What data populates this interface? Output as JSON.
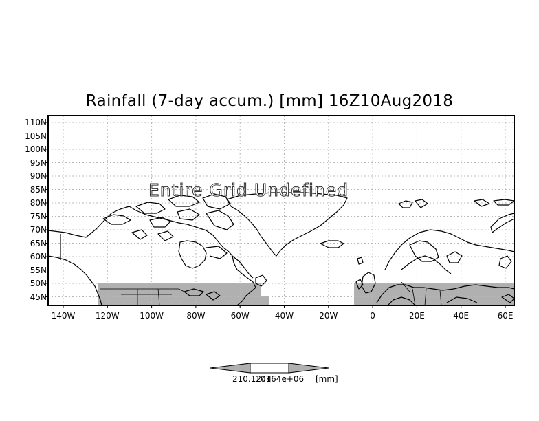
{
  "title": "Rainfall (7-day accum.) [mm] 16Z10Aug2018",
  "overlay_text": "Entire Grid Undefined",
  "lat_labels": [
    "110N",
    "105N",
    "100N",
    "95N",
    "90N",
    "85N",
    "80N",
    "75N",
    "70N",
    "65N",
    "60N",
    "55N",
    "50N",
    "45N"
  ],
  "lon_labels": [
    "140W",
    "120W",
    "100W",
    "80W",
    "60W",
    "40W",
    "20W",
    "0",
    "20E",
    "40E",
    "60E"
  ],
  "colorbar": {
    "value_text": "210.1244",
    "overlap_text": "10164e+06",
    "unit": "[mm]"
  },
  "colors": {
    "undefined_fill": "#b0b0b0",
    "coast": "#000000",
    "grid": "#b8b8b8"
  }
}
